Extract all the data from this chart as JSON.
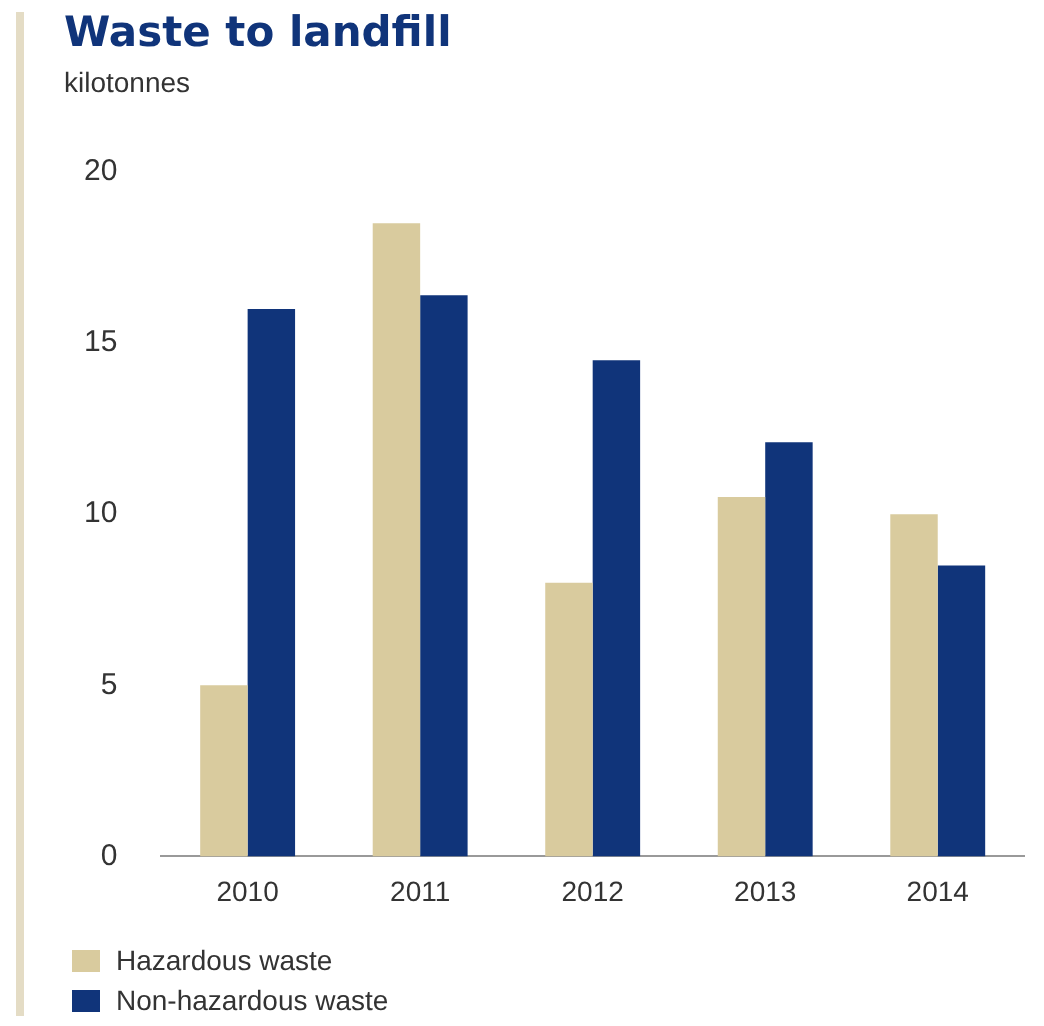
{
  "chart_data": {
    "type": "bar",
    "title": "Waste to landfill",
    "ylabel": "kilotonnes",
    "categories": [
      "2010",
      "2011",
      "2012",
      "2013",
      "2014"
    ],
    "series": [
      {
        "name": "Hazardous waste",
        "color": "#d9cb9e",
        "values": [
          5,
          18.5,
          8,
          10.5,
          10
        ]
      },
      {
        "name": "Non-hazardous waste",
        "color": "#10347a",
        "values": [
          16,
          16.4,
          14.5,
          12.1,
          8.5
        ]
      }
    ],
    "ylim": [
      0,
      20
    ],
    "yticks": [
      0,
      5,
      10,
      15,
      20
    ],
    "grid": false,
    "legend": "bottom left"
  }
}
